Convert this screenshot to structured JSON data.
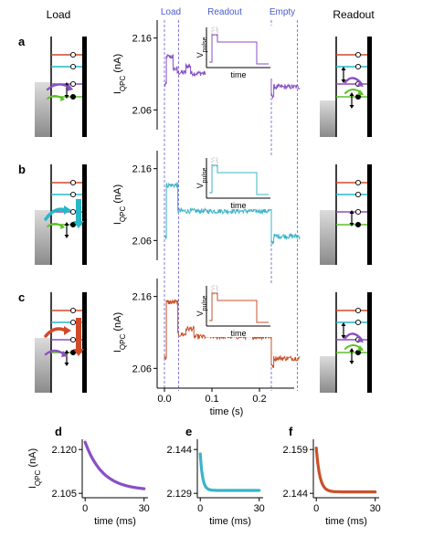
{
  "headers": {
    "left": "Load",
    "right": "Readout"
  },
  "phase_labels": [
    "Load",
    "Readout",
    "Empty"
  ],
  "panel_letters": [
    "a",
    "b",
    "c",
    "d",
    "e",
    "f"
  ],
  "colors": {
    "a": "#8a4fc4",
    "b": "#3ab4c8",
    "c": "#c9512b",
    "guide": "#6a5acd",
    "red_level": "#d14a2a",
    "cyan_level": "#27b7c8",
    "purple_level": "#8a4fc4",
    "green_level": "#5fbf2a"
  },
  "chart_data": [
    {
      "id": "a",
      "type": "line",
      "color": "#8a4fc4",
      "ylabel": "I_QPC (nA)",
      "yticks": [
        "2.16",
        "2.06"
      ],
      "ylim": [
        2.035,
        2.185
      ],
      "xlim": [
        -0.01,
        0.285
      ],
      "segments": [
        {
          "x": [
            0.0,
            0.004
          ],
          "y": [
            2.095,
            2.095
          ]
        },
        {
          "x": [
            0.004,
            0.018
          ],
          "y": [
            2.134,
            2.134
          ]
        },
        {
          "x": [
            0.018,
            0.027
          ],
          "y": [
            2.117,
            2.117
          ]
        },
        {
          "x": [
            0.027,
            0.045
          ],
          "y": [
            2.112,
            2.112
          ]
        },
        {
          "x": [
            0.045,
            0.055
          ],
          "y": [
            2.121,
            2.121
          ]
        },
        {
          "x": [
            0.055,
            0.225
          ],
          "y": [
            2.111,
            2.111
          ]
        },
        {
          "x": [
            0.225,
            0.23
          ],
          "y": [
            2.08,
            2.08
          ]
        },
        {
          "x": [
            0.23,
            0.285
          ],
          "y": [
            2.092,
            2.092
          ]
        }
      ],
      "inset": {
        "ylabel": "V_pulse",
        "xlabel": "time"
      }
    },
    {
      "id": "b",
      "type": "line",
      "color": "#3ab4c8",
      "ylabel": "I_QPC (nA)",
      "yticks": [
        "2.16",
        "2.06"
      ],
      "ylim": [
        2.035,
        2.185
      ],
      "xlim": [
        -0.01,
        0.285
      ],
      "segments": [
        {
          "x": [
            0.0,
            0.004
          ],
          "y": [
            2.066,
            2.066
          ]
        },
        {
          "x": [
            0.004,
            0.028
          ],
          "y": [
            2.137,
            2.137
          ]
        },
        {
          "x": [
            0.028,
            0.225
          ],
          "y": [
            2.101,
            2.101
          ]
        },
        {
          "x": [
            0.225,
            0.23
          ],
          "y": [
            2.058,
            2.058
          ]
        },
        {
          "x": [
            0.23,
            0.285
          ],
          "y": [
            2.066,
            2.066
          ]
        }
      ],
      "inset": {
        "ylabel": "V_pulse",
        "xlabel": "time"
      }
    },
    {
      "id": "c",
      "type": "line",
      "color": "#c9512b",
      "ylabel": "I_QPC (nA)",
      "yticks": [
        "2.16",
        "2.06"
      ],
      "ylim": [
        2.035,
        2.185
      ],
      "xlim": [
        -0.01,
        0.285
      ],
      "xticks": [
        "0.0",
        "0.1",
        "0.2"
      ],
      "xlabel": "time (s)",
      "segments": [
        {
          "x": [
            0.0,
            0.004
          ],
          "y": [
            2.075,
            2.075
          ]
        },
        {
          "x": [
            0.004,
            0.028
          ],
          "y": [
            2.152,
            2.152
          ]
        },
        {
          "x": [
            0.028,
            0.045
          ],
          "y": [
            2.107,
            2.107
          ]
        },
        {
          "x": [
            0.045,
            0.062
          ],
          "y": [
            2.115,
            2.115
          ]
        },
        {
          "x": [
            0.062,
            0.225
          ],
          "y": [
            2.104,
            2.104
          ]
        },
        {
          "x": [
            0.225,
            0.23
          ],
          "y": [
            2.064,
            2.064
          ]
        },
        {
          "x": [
            0.23,
            0.285
          ],
          "y": [
            2.074,
            2.074
          ]
        }
      ],
      "inset": {
        "ylabel": "V_pulse",
        "xlabel": "time"
      }
    },
    {
      "id": "d",
      "type": "line",
      "color": "#8a4fc4",
      "xlabel": "time (ms)",
      "ylabel": "I_QPC (nA)",
      "xticks": [
        "0",
        "30"
      ],
      "yticks": [
        "2.120",
        "2.105"
      ],
      "xlim": [
        -1.5,
        32
      ],
      "ylim": [
        2.1035,
        2.1235
      ],
      "curve": {
        "start": 2.1225,
        "end": 2.106,
        "tau_ms": 9.0
      }
    },
    {
      "id": "e",
      "type": "line",
      "color": "#3ab4c8",
      "xlabel": "time (ms)",
      "xticks": [
        "0",
        "30"
      ],
      "yticks": [
        "2.144",
        "2.129"
      ],
      "xlim": [
        -1.5,
        32
      ],
      "ylim": [
        2.1275,
        2.1475
      ],
      "curve": {
        "start": 2.1425,
        "end": 2.13,
        "tau_ms": 1.2
      }
    },
    {
      "id": "f",
      "type": "line",
      "color": "#c9512b",
      "xlabel": "time (ms)",
      "xticks": [
        "0",
        "30"
      ],
      "yticks": [
        "2.159",
        "2.144"
      ],
      "xlim": [
        -1.5,
        32
      ],
      "ylim": [
        2.1425,
        2.1625
      ],
      "curve": {
        "start": 2.1595,
        "end": 2.1445,
        "tau_ms": 1.8
      }
    }
  ]
}
